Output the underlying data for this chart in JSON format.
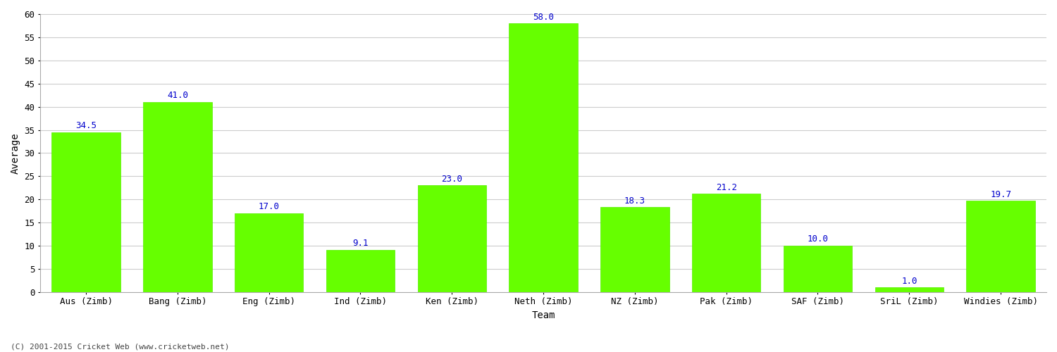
{
  "categories": [
    "Aus (Zimb)",
    "Bang (Zimb)",
    "Eng (Zimb)",
    "Ind (Zimb)",
    "Ken (Zimb)",
    "Neth (Zimb)",
    "NZ (Zimb)",
    "Pak (Zimb)",
    "SAF (Zimb)",
    "SriL (Zimb)",
    "Windies (Zimb)"
  ],
  "values": [
    34.5,
    41.0,
    17.0,
    9.1,
    23.0,
    58.0,
    18.3,
    21.2,
    10.0,
    1.0,
    19.7
  ],
  "bar_color": "#66ff00",
  "bar_edge_color": "#55ee00",
  "value_color": "#0000cc",
  "value_fontsize": 9,
  "xlabel": "Team",
  "ylabel": "Average",
  "ylim": [
    0,
    60
  ],
  "yticks": [
    0,
    5,
    10,
    15,
    20,
    25,
    30,
    35,
    40,
    45,
    50,
    55,
    60
  ],
  "grid_color": "#cccccc",
  "background_color": "#ffffff",
  "footer_text": "(C) 2001-2015 Cricket Web (www.cricketweb.net)",
  "footer_fontsize": 8,
  "footer_color": "#444444",
  "axis_label_fontsize": 10,
  "tick_label_fontsize": 9,
  "bar_width": 0.75
}
